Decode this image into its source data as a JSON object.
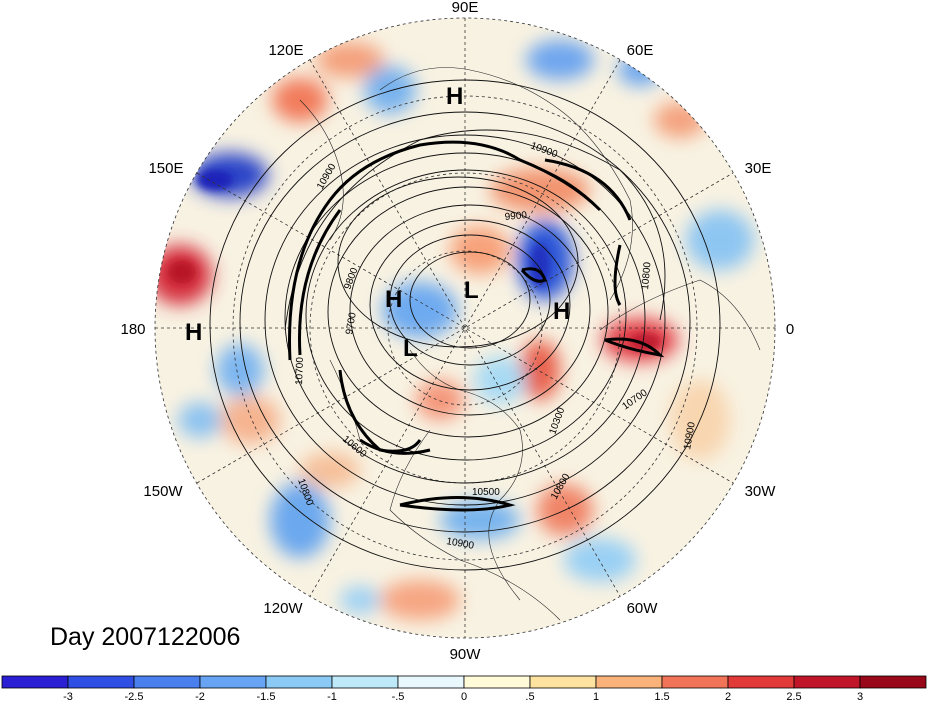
{
  "map": {
    "day_label": "Day 2007122006",
    "longitude_labels": {
      "lon_90E": "90E",
      "lon_60E": "60E",
      "lon_30E": "30E",
      "lon_0": "0",
      "lon_30W": "30W",
      "lon_60W": "60W",
      "lon_90W": "90W",
      "lon_120W": "120W",
      "lon_150W": "150W",
      "lon_180": "180",
      "lon_150E": "150E",
      "lon_120E": "120E"
    },
    "pressure_centers": [
      "H",
      "H",
      "L",
      "H",
      "L",
      "H"
    ],
    "contour_labels": [
      "10900",
      "9900",
      "10800",
      "10900",
      "9800",
      "9700",
      "10700",
      "10300",
      "10700",
      "10900",
      "10800",
      "10600",
      "10800",
      "10500",
      "10900"
    ],
    "colors": {
      "negative_strong": "#1f2fd0",
      "negative": "#5aa2ee",
      "neutral": "#ffffff",
      "positive": "#f8a070",
      "positive_strong": "#b01020"
    }
  },
  "colorbar": {
    "labels": [
      "-3",
      "-2.5",
      "-2",
      "-1.5",
      "-1",
      "-.5",
      "0",
      ".5",
      "1",
      "1.5",
      "2",
      "2.5",
      "3"
    ],
    "colors": [
      "#2a1fd2",
      "#2f4fe4",
      "#4a7fee",
      "#67a4f4",
      "#8ccaf6",
      "#bde9f8",
      "#e8f8fc",
      "#fffad8",
      "#fde2a0",
      "#f8b27a",
      "#f27458",
      "#e23a38",
      "#c01428",
      "#980818"
    ]
  }
}
